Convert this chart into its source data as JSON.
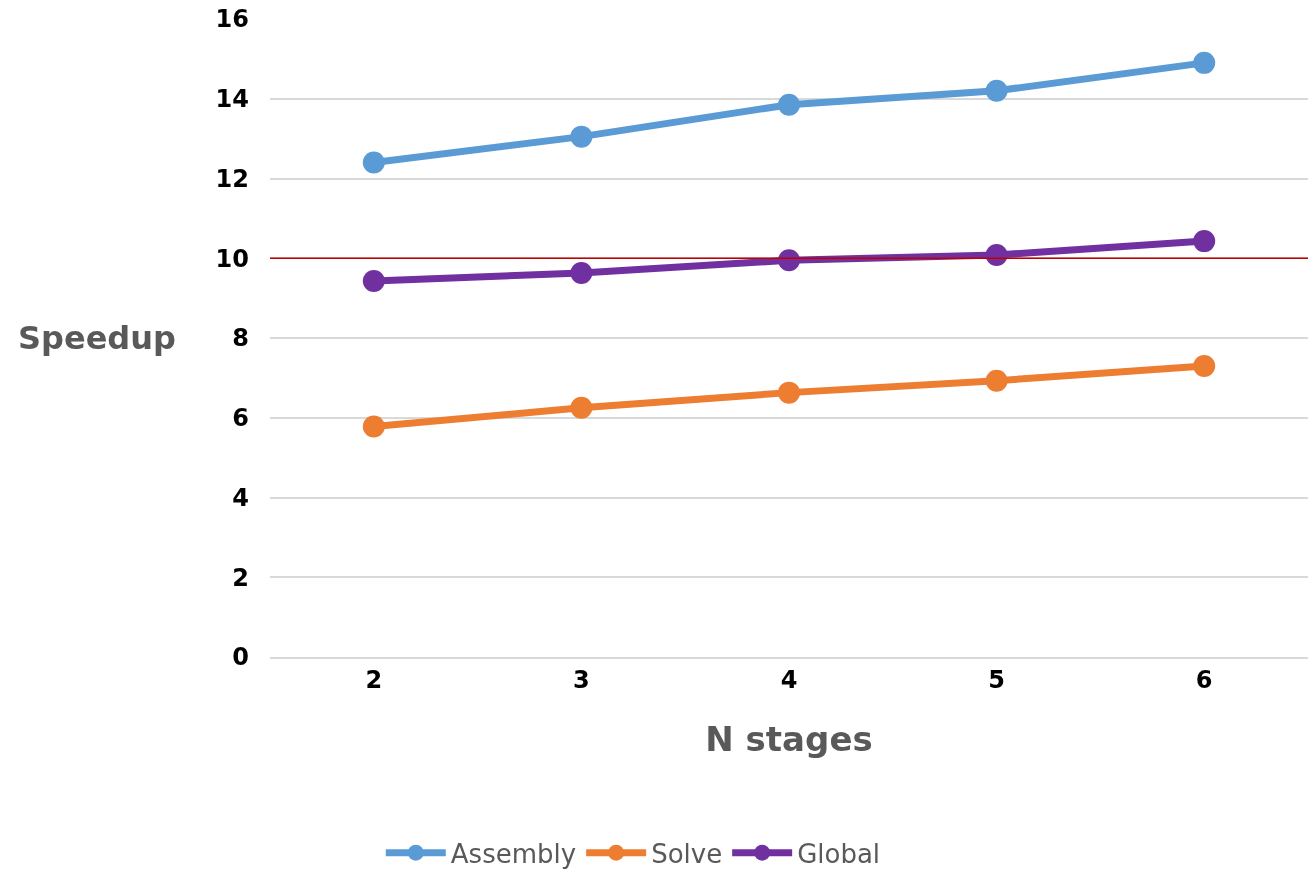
{
  "chart_data": {
    "type": "line",
    "xlabel": "N stages",
    "ylabel": "Speedup",
    "categories": [
      "2",
      "3",
      "4",
      "5",
      "6"
    ],
    "series": [
      {
        "name": "Assembly",
        "color": "#5b9bd5",
        "values": [
          12.4,
          13.05,
          13.85,
          14.2,
          14.9
        ]
      },
      {
        "name": "Solve",
        "color": "#ed7d31",
        "values": [
          5.78,
          6.25,
          6.63,
          6.93,
          7.3
        ]
      },
      {
        "name": "Global",
        "color": "#7030a0",
        "values": [
          9.43,
          9.63,
          9.95,
          10.08,
          10.43
        ]
      }
    ],
    "ylim": [
      0,
      16
    ],
    "yticks": [
      0,
      2,
      4,
      6,
      8,
      10,
      12,
      14,
      16
    ],
    "ref_lines": [
      {
        "axis": "y",
        "value": 10,
        "color": "#c00000",
        "line_style": "solid"
      }
    ],
    "grid": "y",
    "legend": "bottom",
    "marker": "circle",
    "line_style": "solid"
  }
}
